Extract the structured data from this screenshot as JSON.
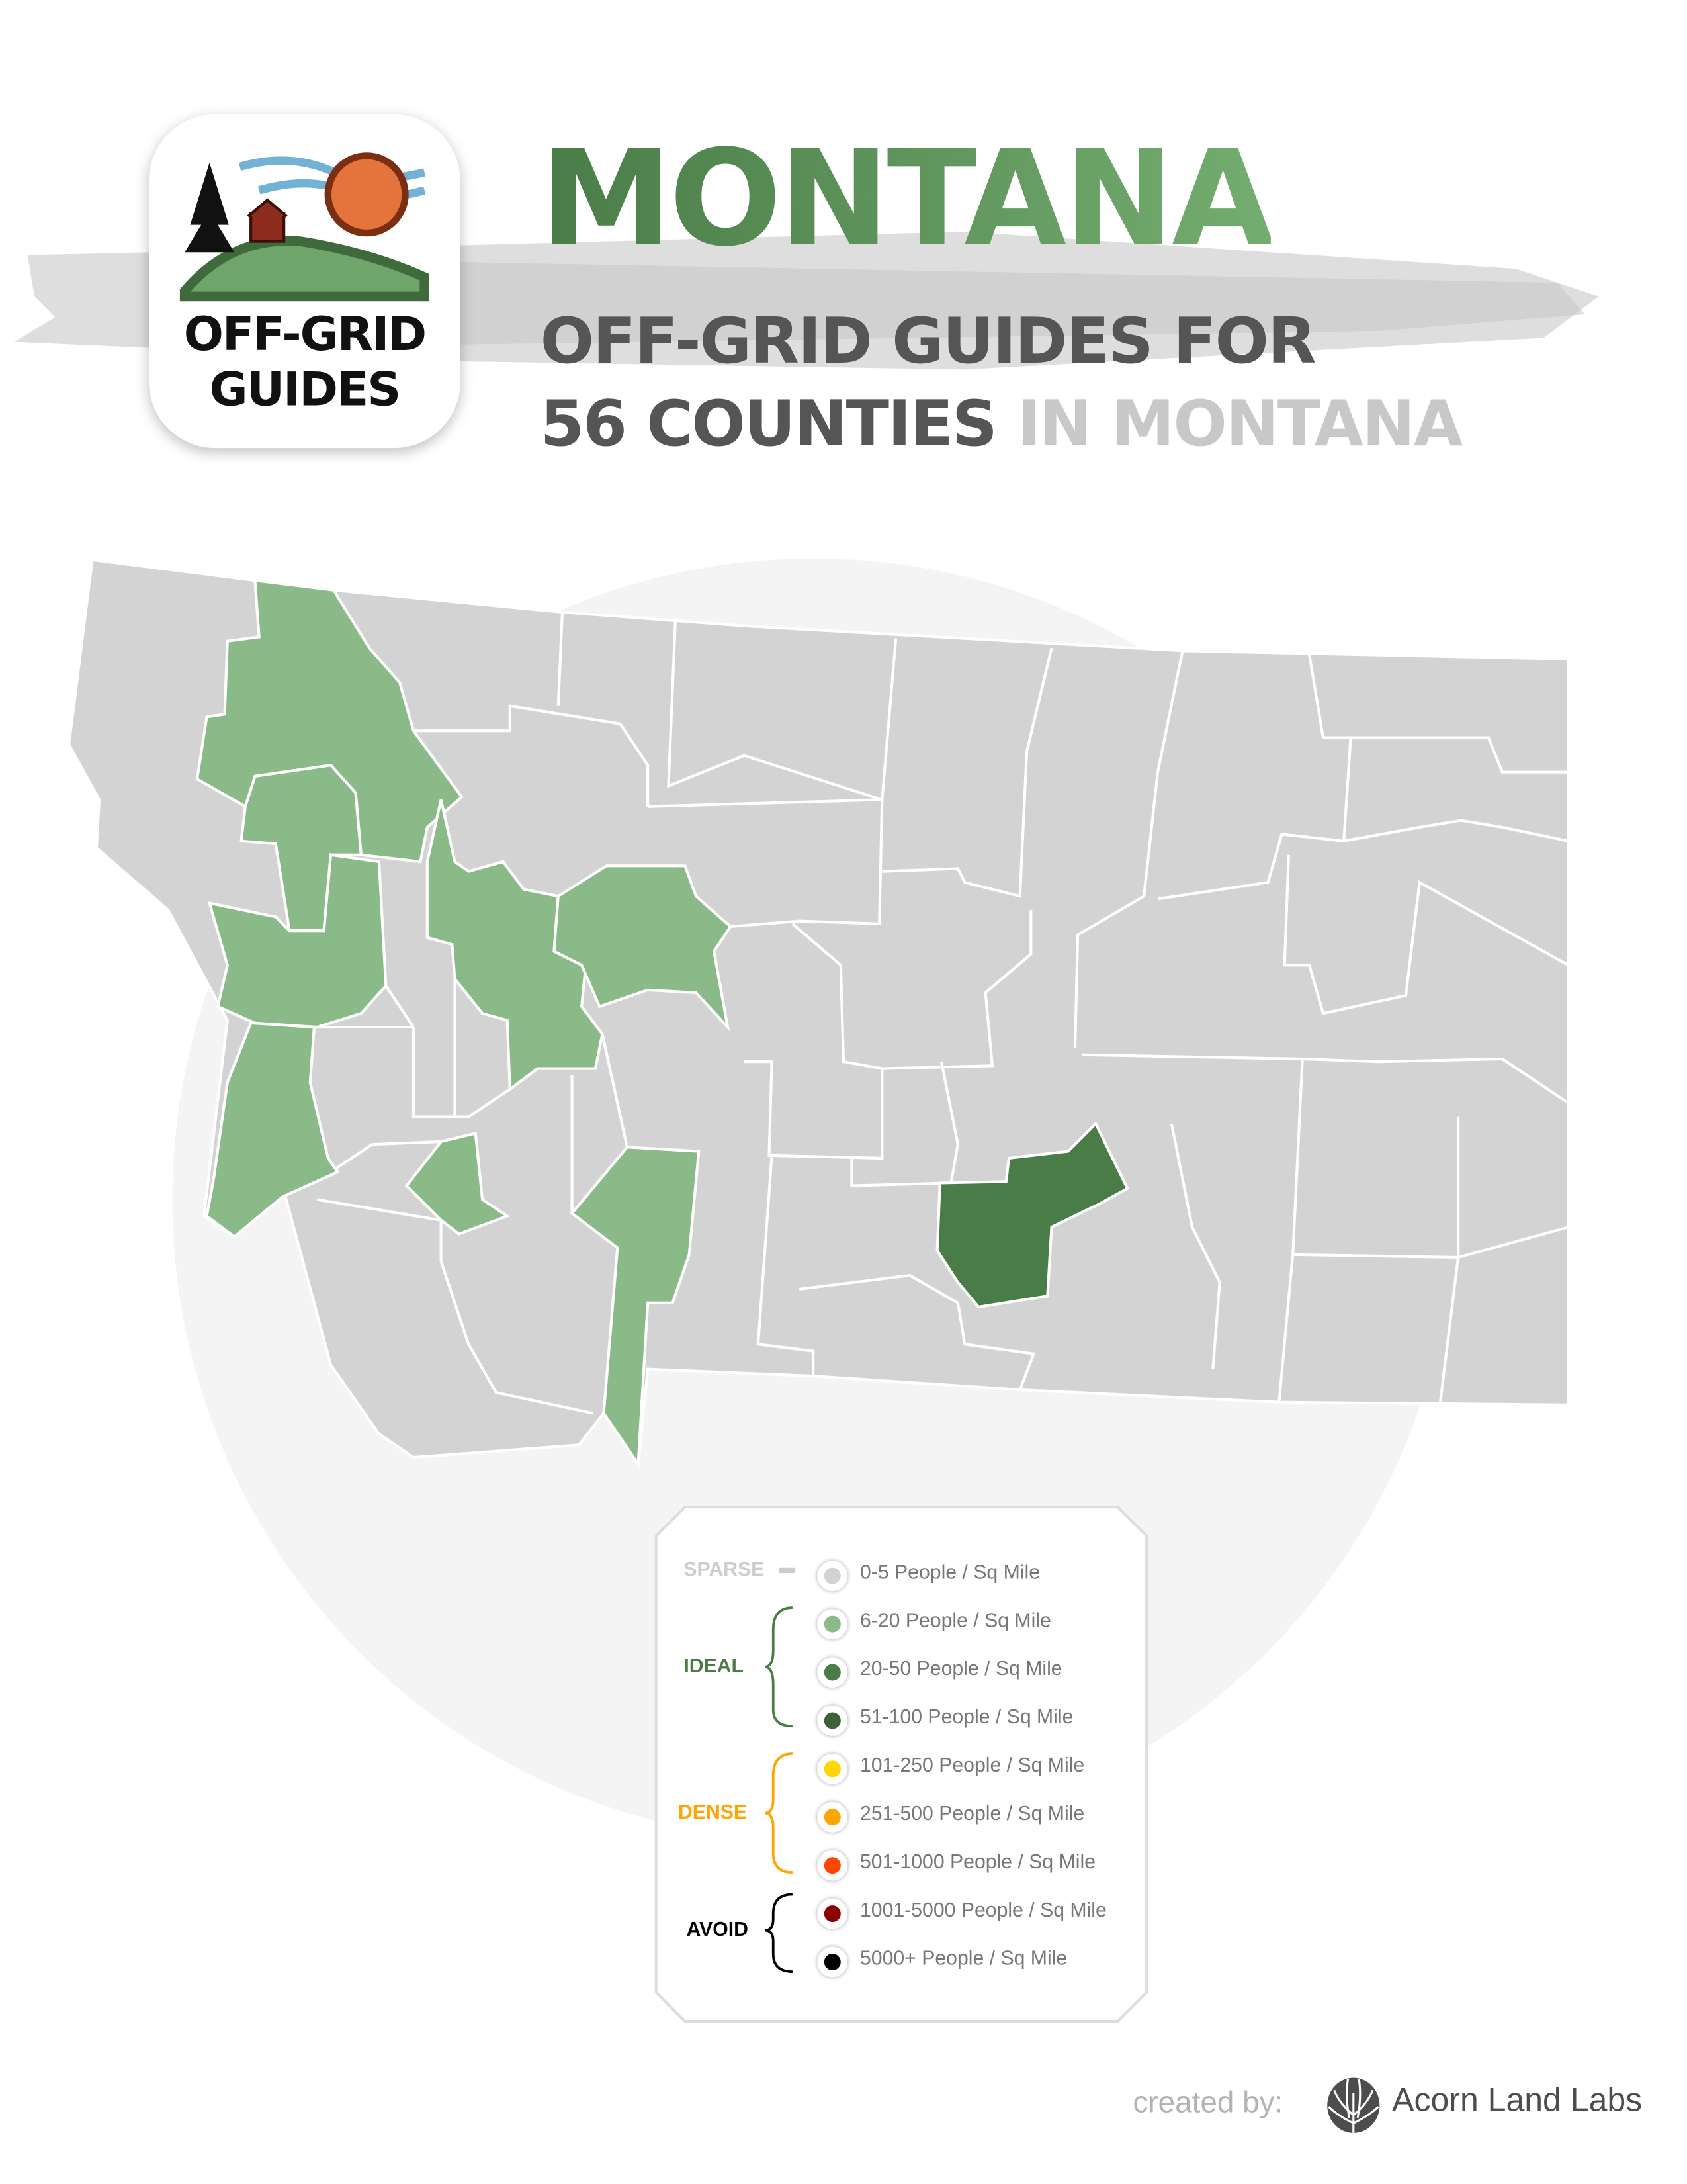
{
  "header": {
    "title": "MONTANA",
    "subtitle_line1": "OFF-GRID GUIDES FOR",
    "subtitle_line2_strong": "56 COUNTIES",
    "subtitle_line2_light": "IN MONTANA"
  },
  "logo": {
    "line1": "OFF-GRID",
    "line2": "GUIDES"
  },
  "colors": {
    "sparse": "#d3d3d3",
    "light_green": "#8aba87",
    "green": "#4a7c47",
    "dark_green": "#3d6139",
    "yellow": "#ffd700",
    "orange": "#ffa500",
    "red_orange": "#ff4500",
    "dark_red": "#8b0000",
    "black": "#000000"
  },
  "map": {
    "state": "Montana",
    "highlight_density_classes": [
      "0-5 People / Sq Mile",
      "6-20 People / Sq Mile",
      "20-50 People / Sq Mile"
    ]
  },
  "legend": {
    "groups": [
      {
        "label": "SPARSE",
        "color": "#cccccc"
      },
      {
        "label": "IDEAL",
        "color": "#4a7c47"
      },
      {
        "label": "DENSE",
        "color": "#ffa500"
      },
      {
        "label": "AVOID",
        "color": "#000000"
      }
    ],
    "items": [
      {
        "label": "0-5 People / Sq Mile",
        "color": "#d3d3d3"
      },
      {
        "label": "6-20 People / Sq Mile",
        "color": "#8aba87"
      },
      {
        "label": "20-50 People / Sq Mile",
        "color": "#4a7c47"
      },
      {
        "label": "51-100 People / Sq Mile",
        "color": "#3d6139"
      },
      {
        "label": "101-250 People / Sq Mile",
        "color": "#ffd700"
      },
      {
        "label": "251-500 People / Sq Mile",
        "color": "#ffa500"
      },
      {
        "label": "501-1000 People / Sq Mile",
        "color": "#ff4500"
      },
      {
        "label": "1001-5000 People / Sq Mile",
        "color": "#8b0000"
      },
      {
        "label": "5000+ People / Sq Mile",
        "color": "#000000"
      }
    ]
  },
  "footer": {
    "created_by": "created by:",
    "brand": "Acorn Land Labs"
  }
}
